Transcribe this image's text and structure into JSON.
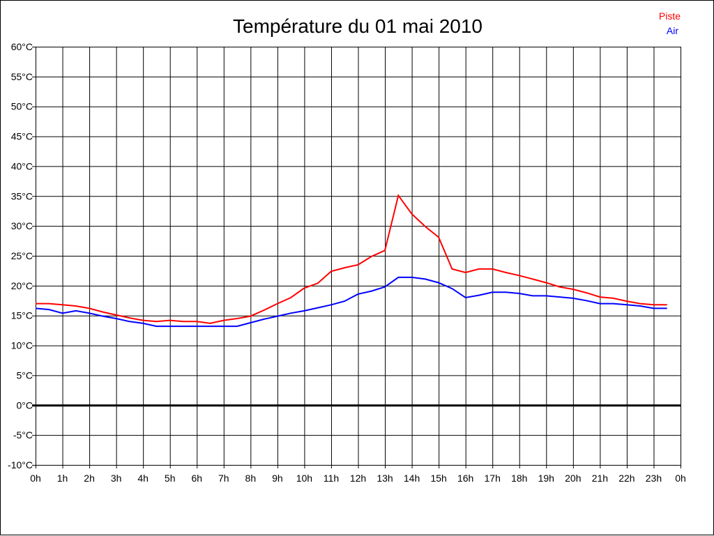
{
  "chart_data": {
    "type": "line",
    "title": "Température du 01 mai 2010",
    "xlabel": "",
    "ylabel": "",
    "ylim": [
      -10,
      60
    ],
    "xlim": [
      0,
      24
    ],
    "grid": true,
    "legend_position": "top-right",
    "x_tick_labels": [
      "0h",
      "1h",
      "2h",
      "3h",
      "4h",
      "5h",
      "6h",
      "7h",
      "8h",
      "9h",
      "10h",
      "11h",
      "12h",
      "13h",
      "14h",
      "15h",
      "16h",
      "17h",
      "18h",
      "19h",
      "20h",
      "21h",
      "22h",
      "23h",
      "0h"
    ],
    "y_tick_labels": [
      "60°C",
      "55°C",
      "50°C",
      "45°C",
      "40°C",
      "35°C",
      "30°C",
      "25°C",
      "20°C",
      "15°C",
      "10°C",
      "5°C",
      "0°C",
      "-5°C",
      "-10°C"
    ],
    "y_tick_values": [
      60,
      55,
      50,
      45,
      40,
      35,
      30,
      25,
      20,
      15,
      10,
      5,
      0,
      -5,
      -10
    ],
    "x": [
      0,
      0.5,
      1,
      1.5,
      2,
      2.5,
      3,
      3.5,
      4,
      4.5,
      5,
      5.5,
      6,
      6.5,
      7,
      7.5,
      8,
      8.5,
      9,
      9.5,
      10,
      10.5,
      11,
      11.5,
      12,
      12.5,
      13,
      13.5,
      14,
      14.5,
      15,
      15.5,
      16,
      16.5,
      17,
      17.5,
      18,
      18.5,
      19,
      19.5,
      20,
      20.5,
      21,
      21.5,
      22,
      22.5,
      23,
      23.5
    ],
    "series": [
      {
        "name": "Piste",
        "color": "#ff0000",
        "values": [
          17.0,
          17.0,
          16.8,
          16.6,
          16.2,
          15.6,
          15.1,
          14.6,
          14.2,
          14.0,
          14.2,
          14.0,
          14.0,
          13.7,
          14.2,
          14.5,
          14.9,
          15.9,
          17.0,
          18.0,
          19.6,
          20.4,
          22.4,
          23.0,
          23.5,
          24.9,
          25.9,
          35.1,
          32.0,
          29.9,
          28.1,
          22.8,
          22.2,
          22.8,
          22.8,
          22.2,
          21.7,
          21.1,
          20.5,
          19.8,
          19.4,
          18.8,
          18.1,
          17.9,
          17.4,
          17.0,
          16.8,
          16.8
        ]
      },
      {
        "name": "Air",
        "color": "#0000ff",
        "values": [
          16.2,
          16.0,
          15.4,
          15.8,
          15.4,
          14.9,
          14.5,
          14.0,
          13.7,
          13.2,
          13.2,
          13.2,
          13.2,
          13.2,
          13.2,
          13.2,
          13.8,
          14.4,
          14.9,
          15.4,
          15.8,
          16.3,
          16.8,
          17.4,
          18.6,
          19.1,
          19.8,
          21.4,
          21.4,
          21.1,
          20.5,
          19.5,
          18.0,
          18.4,
          18.9,
          18.9,
          18.7,
          18.3,
          18.3,
          18.1,
          17.9,
          17.5,
          17.0,
          17.0,
          16.8,
          16.6,
          16.2,
          16.2
        ]
      }
    ]
  }
}
